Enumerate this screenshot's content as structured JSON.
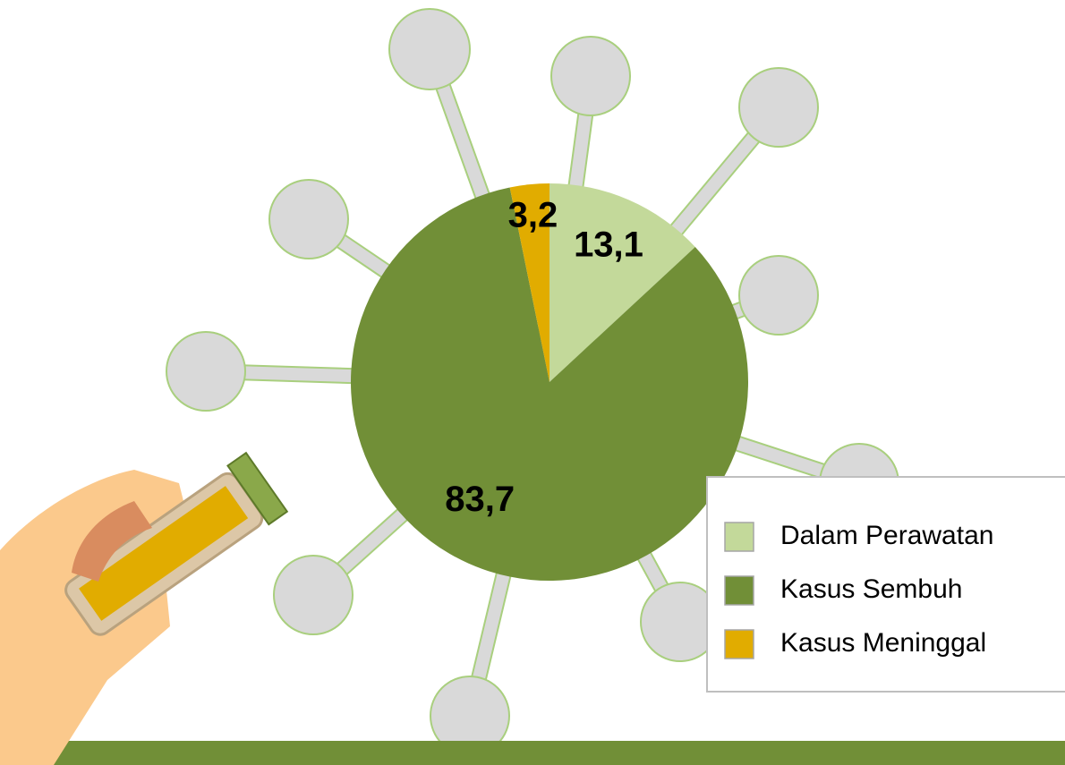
{
  "chart_data": {
    "type": "pie",
    "categories": [
      "Dalam Perawatan",
      "Kasus Sembuh",
      "Kasus Meninggal"
    ],
    "values": [
      13.1,
      83.7,
      3.2
    ],
    "value_labels": [
      "13,1",
      "83,7",
      "3,2"
    ],
    "colors": [
      "#c3d99a",
      "#718f37",
      "#e1ac00"
    ],
    "legend": "right"
  }
}
